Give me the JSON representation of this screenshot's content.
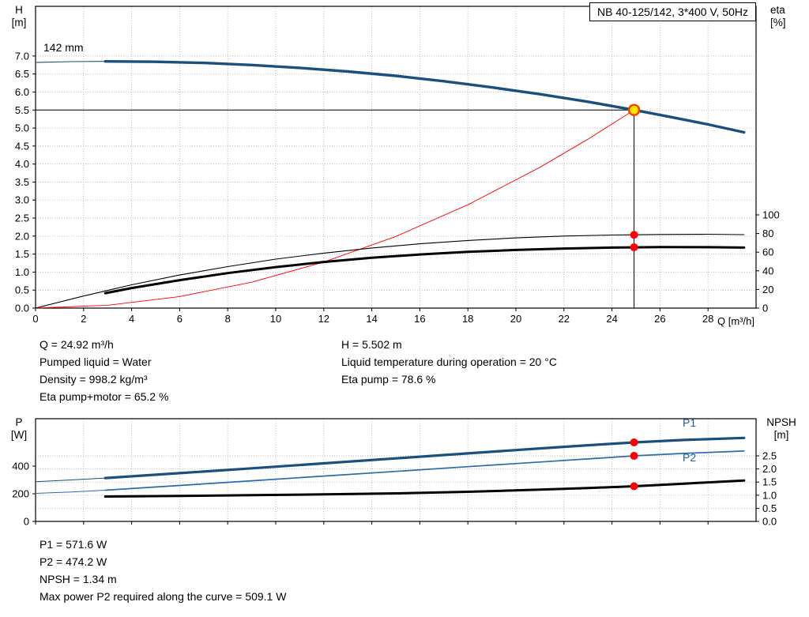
{
  "title_box": "NB 40-125/142, 3*400 V, 50Hz",
  "axes": {
    "h": [
      "H",
      "[m]"
    ],
    "eta": [
      "eta",
      "[%]"
    ],
    "p": [
      "P",
      "[W]"
    ],
    "npsh": [
      "NPSH",
      "[m]"
    ],
    "q_label": "Q [m³/h]"
  },
  "labels": {
    "impeller": "142 mm",
    "p1": "P1",
    "p2": "P2"
  },
  "annotations": {
    "block1_col1": [
      "Q = 24.92 m³/h",
      "Pumped liquid = Water",
      "Density = 998.2 kg/m³",
      "Eta pump+motor = 65.2 %"
    ],
    "block1_col2": [
      "H = 5.502 m",
      "Liquid temperature during operation = 20 °C",
      "Eta pump = 78.6 %"
    ],
    "block2": [
      "P1 = 571.6 W",
      "P2 = 474.2 W",
      "NPSH = 1.34 m",
      "Max power P2 required along the curve = 509.1 W"
    ]
  },
  "colors": {
    "blue": "#1b4f7e",
    "blue2": "#2a6bad",
    "red": "#ff0000",
    "black": "#000000",
    "grid": "#bdbdbd",
    "op_fill": "#ffe400",
    "op_ring": "#ff3b00",
    "label_blue": "#2060a5"
  },
  "chart_data": [
    {
      "id": "head",
      "type": "line",
      "title": "NB 40-125/142, 3*400 V, 50Hz",
      "xlabel": "Q [m³/h]",
      "ylabel_left": "H [m]",
      "ylabel_right": "eta [%]",
      "x": {
        "min": 0,
        "max": 30,
        "ticks": [
          0,
          2,
          4,
          6,
          8,
          10,
          12,
          14,
          16,
          18,
          20,
          22,
          24,
          26,
          28
        ],
        "show_labels": true
      },
      "left": {
        "min": 0,
        "max": 8.38,
        "ticks": [
          0,
          0.5,
          1,
          1.5,
          2,
          2.5,
          3,
          3.5,
          4,
          4.5,
          5,
          5.5,
          6,
          6.5,
          7
        ],
        "decimals": 1
      },
      "right": {
        "ticks": [
          0,
          20,
          40,
          60,
          80,
          100
        ],
        "unit_in_left": 0.02589,
        "decimals": 0
      },
      "grid_h": "left",
      "series": [
        {
          "name": "system-curve",
          "color": "red",
          "width": 0.9,
          "axis": "left",
          "points": [
            [
              0,
              0
            ],
            [
              3,
              0.08
            ],
            [
              6,
              0.32
            ],
            [
              9,
              0.72
            ],
            [
              12,
              1.28
            ],
            [
              15,
              1.99
            ],
            [
              18,
              2.87
            ],
            [
              21,
              3.91
            ],
            [
              23,
              4.69
            ],
            [
              24.92,
              5.502
            ]
          ]
        },
        {
          "name": "eta-pump",
          "color": "black",
          "width": 1.1,
          "axis": "right",
          "points": [
            [
              0,
              0
            ],
            [
              2,
              13
            ],
            [
              4,
              25
            ],
            [
              6,
              35.5
            ],
            [
              8,
              44.5
            ],
            [
              10,
              52.5
            ],
            [
              12,
              59
            ],
            [
              14,
              64.5
            ],
            [
              16,
              69
            ],
            [
              18,
              72.5
            ],
            [
              20,
              75.3
            ],
            [
              22,
              77.3
            ],
            [
              24,
              78.4
            ],
            [
              24.92,
              78.6
            ],
            [
              26,
              79
            ],
            [
              28,
              79.2
            ],
            [
              29.5,
              78.8
            ]
          ]
        },
        {
          "name": "eta-pump-motor",
          "color": "black",
          "width": 3,
          "axis": "right",
          "points": [
            [
              2.9,
              16
            ],
            [
              4,
              21.5
            ],
            [
              6,
              30
            ],
            [
              8,
              37.5
            ],
            [
              10,
              44
            ],
            [
              12,
              49.5
            ],
            [
              14,
              54
            ],
            [
              16,
              57.5
            ],
            [
              18,
              60.3
            ],
            [
              20,
              62.4
            ],
            [
              22,
              63.9
            ],
            [
              24,
              64.9
            ],
            [
              24.92,
              65.2
            ],
            [
              26,
              65.4
            ],
            [
              28,
              65.3
            ],
            [
              29.5,
              64.9
            ]
          ]
        },
        {
          "name": "head-ext",
          "color": "blue",
          "width": 1.1,
          "axis": "left",
          "points": [
            [
              0,
              6.82
            ],
            [
              1.5,
              6.845
            ],
            [
              2.9,
              6.85
            ]
          ]
        },
        {
          "name": "head-142mm",
          "color": "blue",
          "width": 3.4,
          "axis": "left",
          "points": [
            [
              2.9,
              6.85
            ],
            [
              5,
              6.84
            ],
            [
              7,
              6.81
            ],
            [
              9,
              6.75
            ],
            [
              11,
              6.67
            ],
            [
              13,
              6.57
            ],
            [
              15,
              6.45
            ],
            [
              17,
              6.3
            ],
            [
              19,
              6.13
            ],
            [
              21,
              5.94
            ],
            [
              23,
              5.73
            ],
            [
              24.92,
              5.502
            ],
            [
              26.5,
              5.3
            ],
            [
              28,
              5.1
            ],
            [
              29.5,
              4.88
            ]
          ]
        }
      ],
      "operating_point": {
        "q": 24.92,
        "h": 5.502
      },
      "dots": [
        {
          "q": 24.92,
          "v": 78.6,
          "axis": "right"
        },
        {
          "q": 24.92,
          "v": 65.2,
          "axis": "right"
        }
      ]
    },
    {
      "id": "power",
      "type": "line",
      "xlabel": "Q [m³/h]",
      "ylabel_left": "P [W]",
      "ylabel_right": "NPSH [m]",
      "x": {
        "min": 0,
        "max": 30,
        "ticks": [
          0,
          2,
          4,
          6,
          8,
          10,
          12,
          14,
          16,
          18,
          20,
          22,
          24,
          26,
          28
        ],
        "show_labels": false
      },
      "left": {
        "min": 0,
        "max": 743,
        "ticks": [
          0,
          200,
          400
        ],
        "decimals": 0
      },
      "right": {
        "ticks": [
          0,
          0.5,
          1,
          1.5,
          2,
          2.5
        ],
        "unit_in_left": 189.7,
        "decimals": 1
      },
      "grid_h": "right",
      "series": [
        {
          "name": "p2-ext",
          "color": "blue2",
          "width": 1,
          "axis": "left",
          "points": [
            [
              0,
              203
            ],
            [
              1.5,
              213
            ],
            [
              2.9,
              226
            ]
          ]
        },
        {
          "name": "p1-ext",
          "color": "blue",
          "width": 1,
          "axis": "left",
          "points": [
            [
              0,
              287
            ],
            [
              1.5,
              300
            ],
            [
              2.9,
              314
            ]
          ]
        },
        {
          "name": "npsh",
          "color": "black",
          "width": 3,
          "axis": "right",
          "points": [
            [
              2.9,
              0.95
            ],
            [
              6,
              0.97
            ],
            [
              9,
              1.0
            ],
            [
              12,
              1.03
            ],
            [
              15,
              1.07
            ],
            [
              18,
              1.13
            ],
            [
              21,
              1.21
            ],
            [
              23,
              1.27
            ],
            [
              24.92,
              1.34
            ],
            [
              27,
              1.44
            ],
            [
              29.5,
              1.56
            ]
          ]
        },
        {
          "name": "p2",
          "color": "blue2",
          "width": 1.7,
          "axis": "left",
          "points": [
            [
              2.9,
              226
            ],
            [
              6,
              260
            ],
            [
              9,
              294
            ],
            [
              12,
              328
            ],
            [
              15,
              362
            ],
            [
              18,
              396
            ],
            [
              21,
              430
            ],
            [
              23,
              452
            ],
            [
              24.92,
              474.2
            ],
            [
              27,
              492
            ],
            [
              29.5,
              509
            ]
          ]
        },
        {
          "name": "p1",
          "color": "blue",
          "width": 3.2,
          "axis": "left",
          "points": [
            [
              2.9,
              314
            ],
            [
              6,
              349
            ],
            [
              9,
              384
            ],
            [
              12,
              420
            ],
            [
              15,
              456
            ],
            [
              18,
              492
            ],
            [
              21,
              528
            ],
            [
              23,
              551
            ],
            [
              24.92,
              571.6
            ],
            [
              27,
              589
            ],
            [
              29.5,
              604
            ]
          ]
        }
      ],
      "dots": [
        {
          "q": 24.92,
          "v": 571.6,
          "axis": "left"
        },
        {
          "q": 24.92,
          "v": 474.2,
          "axis": "left"
        },
        {
          "q": 24.92,
          "v": 1.34,
          "axis": "right"
        }
      ]
    }
  ]
}
